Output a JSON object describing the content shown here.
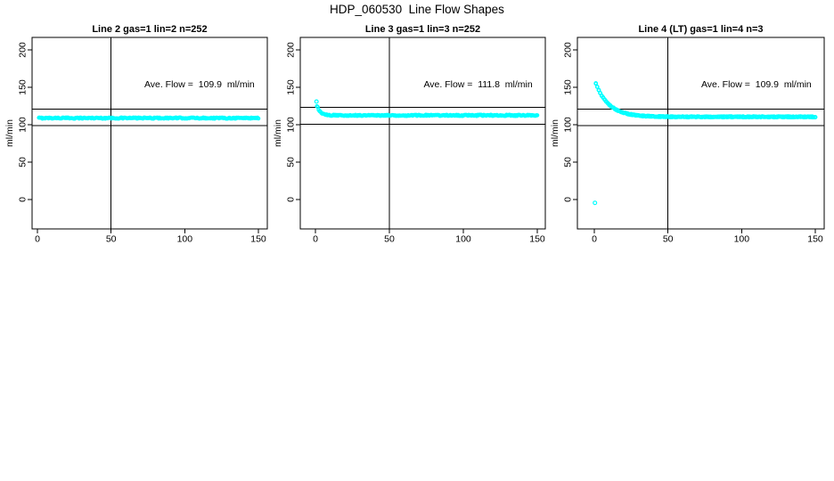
{
  "figure": {
    "title": "HDP_060530  Line Flow Shapes",
    "background": "#ffffff",
    "point_color": "#00ffff",
    "line_color": "#000000"
  },
  "chart_data": [
    {
      "type": "scatter",
      "title": "Line 2 gas=1 lin=2 n=252",
      "n_label": 252,
      "ave_flow_ml_min": 109.9,
      "annotation": "Ave. Flow =  109.9  ml/min",
      "annotation_pos": [
        110,
        153
      ],
      "ylabel": "ml/min",
      "xlim": [
        0,
        150
      ],
      "ylim": [
        0,
        200
      ],
      "xticks": [
        0,
        50,
        100,
        150
      ],
      "yticks": [
        0,
        50,
        100,
        150,
        200
      ],
      "vline_x": 50,
      "hlines": [
        120.9,
        98.9
      ],
      "marker": "open-circle",
      "series": {
        "runs": 1,
        "points_per_run": 252,
        "flat_value": 108.9,
        "noise": 0.8,
        "transient_start": null,
        "transient_tau": null,
        "transient_x0": 1
      },
      "outliers": []
    },
    {
      "type": "scatter",
      "title": "Line 3 gas=1 lin=3 n=252",
      "n_label": 252,
      "ave_flow_ml_min": 111.8,
      "annotation": "Ave. Flow =  111.8  ml/min",
      "annotation_pos": [
        110,
        153
      ],
      "ylabel": "ml/min",
      "xlim": [
        0,
        150
      ],
      "ylim": [
        0,
        200
      ],
      "xticks": [
        0,
        50,
        100,
        150
      ],
      "yticks": [
        0,
        50,
        100,
        150,
        200
      ],
      "vline_x": 50,
      "hlines": [
        123.0,
        100.6
      ],
      "marker": "open-circle",
      "series": {
        "runs": 1,
        "points_per_run": 252,
        "flat_value": 112.5,
        "noise": 0.8,
        "transient_start": 124,
        "transient_tau": 2.0,
        "transient_x0": 1.5
      },
      "outliers": [
        [
          0.7,
          131
        ]
      ]
    },
    {
      "type": "scatter",
      "title": "Line 4 (LT) gas=1 lin=4 n=3",
      "n_label": 3,
      "ave_flow_ml_min": 109.9,
      "annotation": "Ave. Flow =  109.9  ml/min",
      "annotation_pos": [
        110,
        153
      ],
      "ylabel": "ml/min",
      "xlim": [
        0,
        150
      ],
      "ylim": [
        0,
        200
      ],
      "xticks": [
        0,
        50,
        100,
        150
      ],
      "yticks": [
        0,
        50,
        100,
        150,
        200
      ],
      "vline_x": 50,
      "hlines": [
        120.9,
        98.9
      ],
      "marker": "open-circle",
      "series": {
        "runs": 3,
        "points_per_run": 150,
        "flat_value": 110.5,
        "noise": 0.7,
        "transient_start": 156,
        "transient_tau": 9.0,
        "transient_x0": 0.8
      },
      "outliers": [
        [
          0.4,
          -4.4
        ]
      ]
    }
  ]
}
